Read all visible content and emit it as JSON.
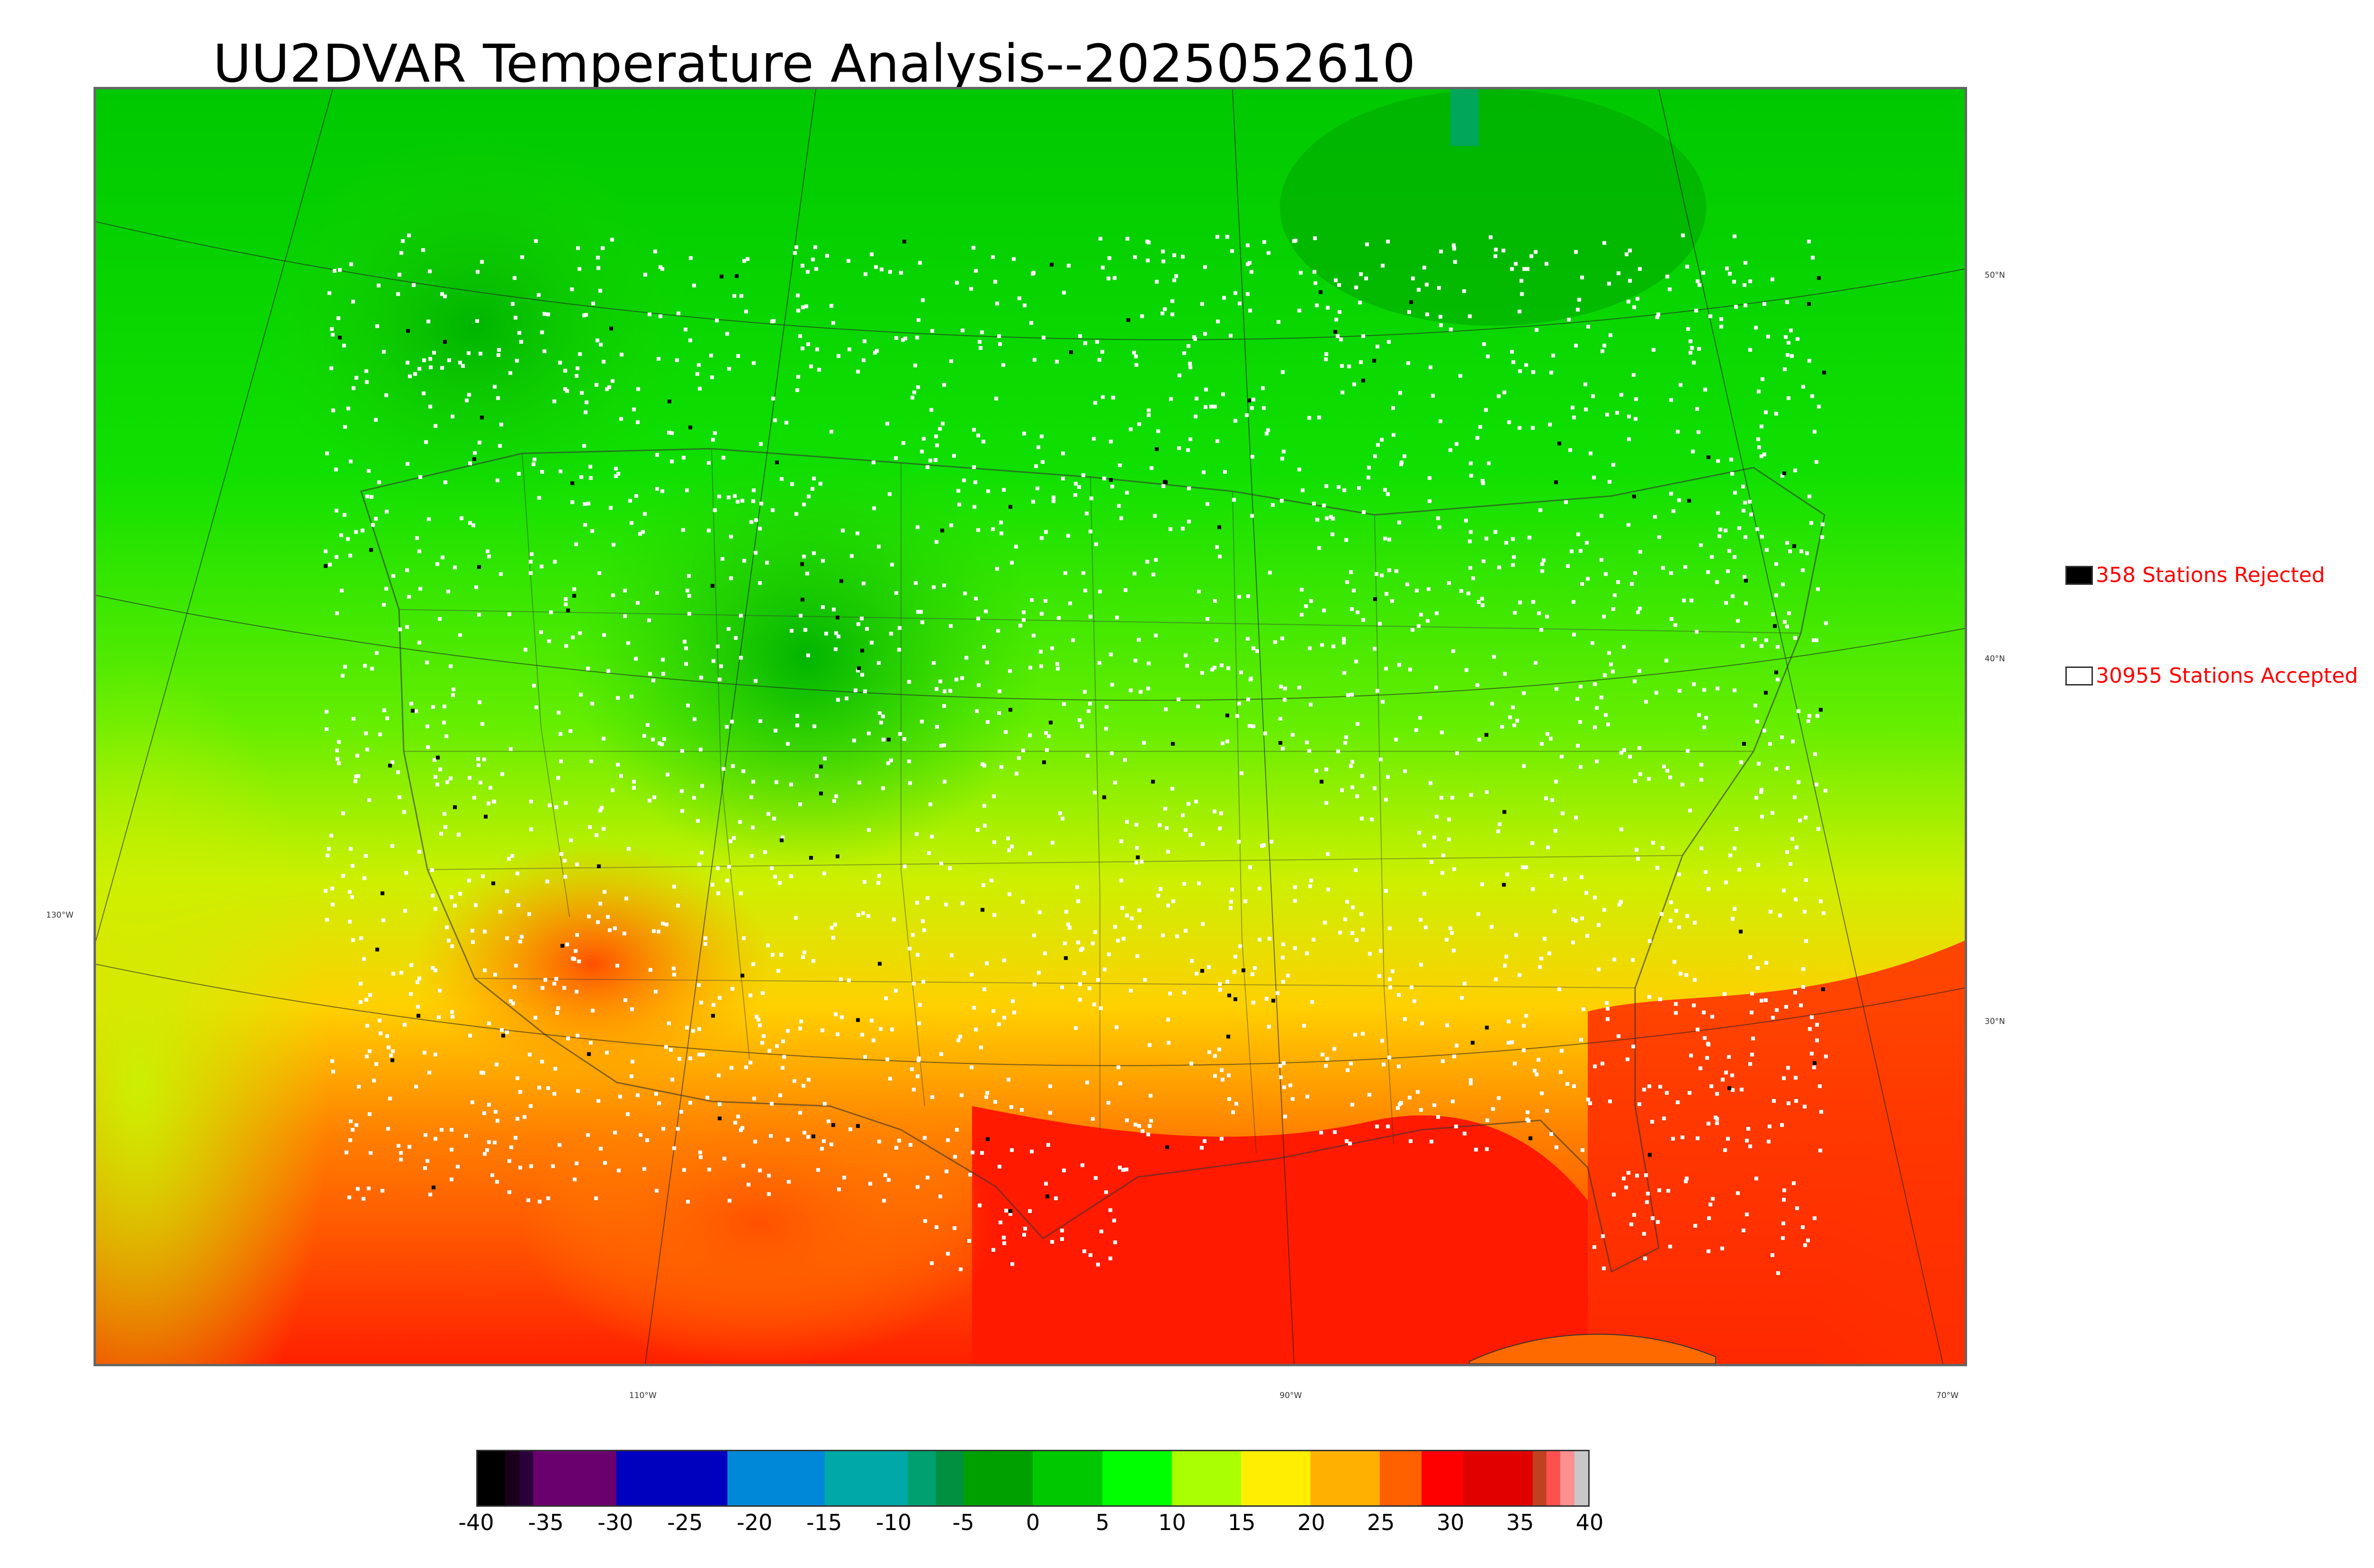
{
  "title": "UU2DVAR Temperature Analysis--2025052610",
  "graticule": {
    "lat_labels": [
      "50°N",
      "40°N",
      "30°N"
    ],
    "lon_labels": [
      "130°W",
      "110°W",
      "90°W",
      "70°W"
    ]
  },
  "legend": {
    "rejected": {
      "label": "358 Stations Rejected",
      "swatch_color": "#000000"
    },
    "accepted": {
      "label": "30955 Stations Accepted",
      "swatch_color": "#ffffff"
    }
  },
  "colorbar": {
    "ticks": [
      "-40",
      "-35",
      "-30",
      "-25",
      "-20",
      "-15",
      "-10",
      "-5",
      "0",
      "5",
      "10",
      "15",
      "20",
      "25",
      "30",
      "35",
      "40"
    ],
    "range": [
      -40,
      40
    ],
    "bands": [
      {
        "from": -40,
        "to": -38,
        "color": "#000000"
      },
      {
        "from": -38,
        "to": -37,
        "color": "#1a001a"
      },
      {
        "from": -37,
        "to": -36,
        "color": "#2a003a"
      },
      {
        "from": -36,
        "to": -30,
        "color": "#6a006e"
      },
      {
        "from": -30,
        "to": -22,
        "color": "#0000bf"
      },
      {
        "from": -22,
        "to": -15,
        "color": "#0088d8"
      },
      {
        "from": -15,
        "to": -9,
        "color": "#00a8a8"
      },
      {
        "from": -9,
        "to": -7,
        "color": "#00a070"
      },
      {
        "from": -7,
        "to": -5,
        "color": "#009040"
      },
      {
        "from": -5,
        "to": 0,
        "color": "#00a000"
      },
      {
        "from": 0,
        "to": 5,
        "color": "#00c800"
      },
      {
        "from": 5,
        "to": 10,
        "color": "#00ff00"
      },
      {
        "from": 10,
        "to": 15,
        "color": "#aaff00"
      },
      {
        "from": 15,
        "to": 20,
        "color": "#ffee00"
      },
      {
        "from": 20,
        "to": 25,
        "color": "#ffb000"
      },
      {
        "from": 25,
        "to": 28,
        "color": "#ff6000"
      },
      {
        "from": 28,
        "to": 31,
        "color": "#ff0000"
      },
      {
        "from": 31,
        "to": 36,
        "color": "#e00000"
      },
      {
        "from": 36,
        "to": 37,
        "color": "#c04020"
      },
      {
        "from": 37,
        "to": 38,
        "color": "#ff5050"
      },
      {
        "from": 38,
        "to": 39,
        "color": "#ff9090"
      },
      {
        "from": 39,
        "to": 40,
        "color": "#c8c8c8"
      }
    ]
  },
  "colors": {
    "ocean_gulf": "#ff1a00",
    "ocean_pacific": "#ccf000",
    "canada": "#00d400",
    "land_mid": "#33ee00",
    "southwest": "#ff8800"
  }
}
